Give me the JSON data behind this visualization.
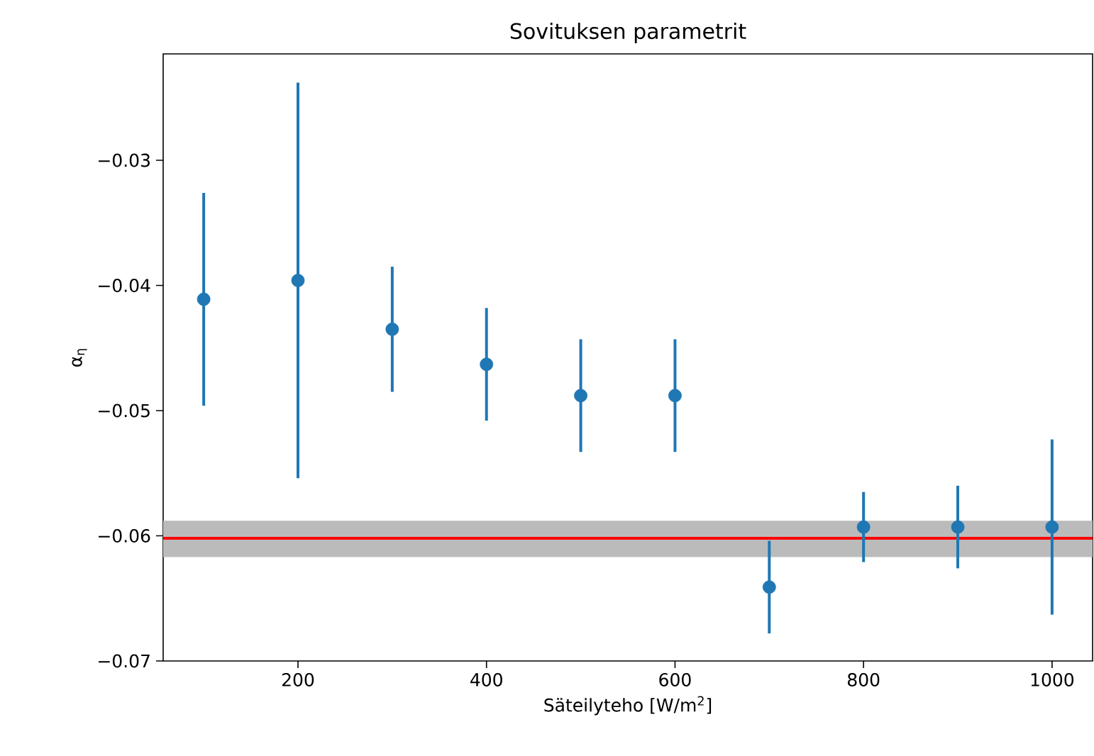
{
  "chart_data": {
    "type": "scatter",
    "title": "Sovituksen parametrit",
    "xlabel": "Säteilyteho [W/m$^{2}$]",
    "ylabel": "α$_{η}$",
    "x": [
      100,
      200,
      300,
      400,
      500,
      600,
      700,
      800,
      900,
      1000
    ],
    "values": [
      -0.0411,
      -0.0396,
      -0.0435,
      -0.0463,
      -0.0488,
      -0.0488,
      -0.0641,
      -0.0593,
      -0.0593,
      -0.0593
    ],
    "errors": [
      0.0085,
      0.0158,
      0.005,
      0.0045,
      0.0045,
      0.0045,
      0.0037,
      0.0028,
      0.0033,
      0.007
    ],
    "color": "#1f77b4",
    "marker": "circle",
    "grid": false,
    "xlim": [
      57,
      1043
    ],
    "ylim": [
      -0.07,
      -0.0215
    ],
    "xticks": [
      200,
      400,
      600,
      800,
      1000
    ],
    "yticks": [
      {
        "value": -0.07,
        "label": "−0.07"
      },
      {
        "value": -0.06,
        "label": "−0.06"
      },
      {
        "value": -0.05,
        "label": "−0.05"
      },
      {
        "value": -0.04,
        "label": "−0.04"
      },
      {
        "value": -0.03,
        "label": "−0.03"
      }
    ],
    "ref_lines": [
      {
        "axis": "y",
        "value": -0.0602,
        "color": "#ff0000"
      }
    ],
    "bands": [
      {
        "axis": "y",
        "from": -0.0617,
        "to": -0.0588,
        "color": "#bbbbbb"
      }
    ]
  }
}
